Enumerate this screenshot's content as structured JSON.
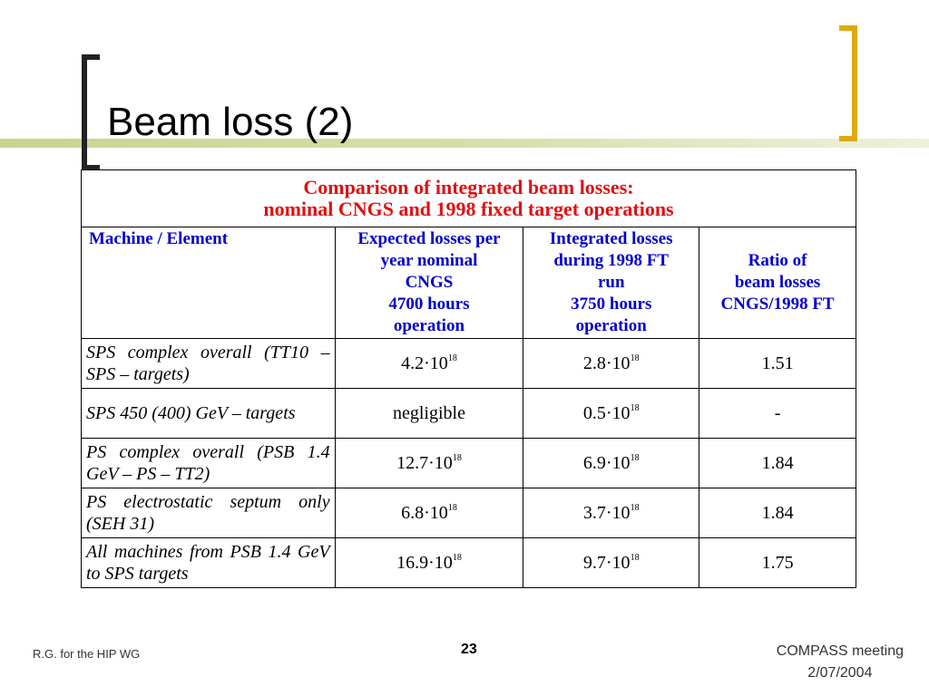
{
  "header": {
    "title": "Beam loss (2)"
  },
  "table": {
    "caption": [
      "Comparison of  integrated beam losses:",
      "nominal CNGS and 1998 fixed target operations"
    ],
    "columns": [
      [
        "Machine / Element"
      ],
      [
        "Expected losses per",
        "year nominal",
        "CNGS",
        "4700 hours",
        "operation"
      ],
      [
        "Integrated losses",
        "during 1998 FT",
        "run",
        "3750 hours",
        "operation"
      ],
      [
        "Ratio of",
        "beam losses",
        "CNGS/1998 FT"
      ]
    ],
    "rows": [
      [
        "SPS complex overall (TT10 – SPS – targets)",
        {
          "base": "4.2·10",
          "exp": "18"
        },
        {
          "base": "2.8·10",
          "exp": "18"
        },
        "1.51"
      ],
      [
        "SPS 450 (400) GeV – targets",
        "negligible",
        {
          "base": "0.5·10",
          "exp": "18"
        },
        "-"
      ],
      [
        "PS complex overall (PSB 1.4 GeV – PS – TT2)",
        {
          "base": "12.7·10",
          "exp": "18"
        },
        {
          "base": "6.9·10",
          "exp": "18"
        },
        "1.84"
      ],
      [
        "PS electrostatic septum only (SEH 31)",
        {
          "base": "6.8·10",
          "exp": "18"
        },
        {
          "base": "3.7·10",
          "exp": "18"
        },
        "1.84"
      ],
      [
        "All machines from PSB 1.4 GeV to SPS targets",
        {
          "base": "16.9·10",
          "exp": "18"
        },
        {
          "base": "9.7·10",
          "exp": "18"
        },
        "1.75"
      ]
    ]
  },
  "footer": {
    "left": "R.G. for the HIP WG",
    "page": "23",
    "right": [
      "COMPASS meeting",
      "2/07/2004"
    ]
  }
}
